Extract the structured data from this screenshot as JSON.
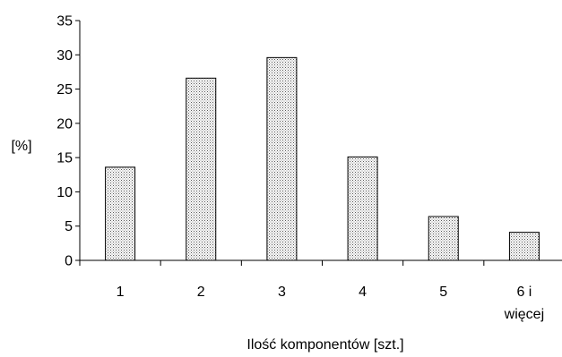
{
  "chart_data": {
    "type": "bar",
    "categories": [
      [
        "1"
      ],
      [
        "2"
      ],
      [
        "3"
      ],
      [
        "4"
      ],
      [
        "5"
      ],
      [
        "6 i",
        "więcej"
      ]
    ],
    "values": [
      13.6,
      26.6,
      29.6,
      15.1,
      6.4,
      4.1
    ],
    "xlabel": "Ilość komponentów [szt.]",
    "ylabel": "[%]",
    "ylim": [
      0,
      35
    ],
    "yticks": [
      "0",
      "5",
      "10",
      "15",
      "20",
      "25",
      "30",
      "35"
    ],
    "ytick_values": [
      0,
      5,
      10,
      15,
      20,
      25,
      30,
      35
    ],
    "grid": false,
    "bar_fill": "dotted-gray",
    "colors": {
      "axis": "#000000",
      "bar_stroke": "#000000",
      "bar_dots": "#555555"
    }
  }
}
